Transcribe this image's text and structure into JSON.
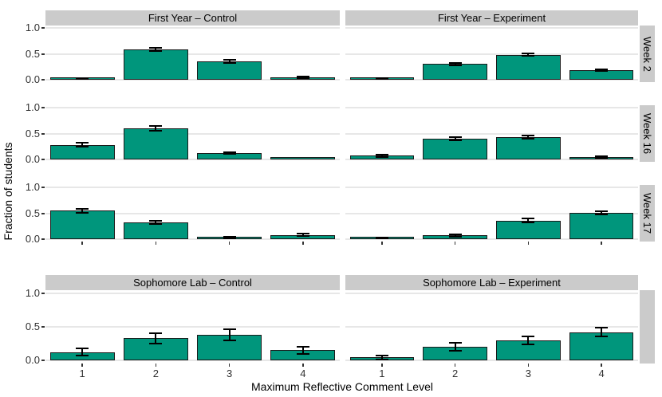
{
  "figure": {
    "colors": {
      "bar_fill": "#00967C",
      "bar_border": "#1A1A1A",
      "strip_background": "#CBCBCB",
      "gridline": "#E7E7E7",
      "error_bar": "#000000",
      "axis_text": "#303030",
      "tick_mark": "#333333"
    }
  },
  "chart_data": {
    "type": "bar",
    "title": "",
    "xlabel": "Maximum Reflective Comment Level",
    "ylabel": "Fraction of students",
    "ylim": [
      0,
      1.0
    ],
    "grid": "major-horizontal",
    "legend": "none",
    "y_tick_values": [
      1.0,
      0.5,
      0.0
    ],
    "y_tick_labels": [
      "1.0",
      "0.5",
      "0.0"
    ],
    "categories": [
      "1",
      "2",
      "3",
      "4"
    ],
    "facet_groups": [
      {
        "col_strips": [
          "First Year – Control",
          "First Year – Experiment"
        ],
        "rows": [
          {
            "strip": "Week 2",
            "panels": [
              {
                "facet": "First Year Control / Week 2",
                "values": [
                  0.01,
                  0.58,
                  0.35,
                  0.05
                ],
                "errors": [
                  0.005,
                  0.03,
                  0.03,
                  0.015
                ]
              },
              {
                "facet": "First Year Experiment / Week 2",
                "values": [
                  0.02,
                  0.3,
                  0.48,
                  0.18
                ],
                "errors": [
                  0.01,
                  0.02,
                  0.025,
                  0.02
                ]
              }
            ]
          },
          {
            "strip": "Week 16",
            "panels": [
              {
                "facet": "First Year Control / Week 16",
                "values": [
                  0.28,
                  0.6,
                  0.12,
                  0.005
                ],
                "errors": [
                  0.035,
                  0.04,
                  0.02,
                  0
                ]
              },
              {
                "facet": "First Year Experiment / Week 16",
                "values": [
                  0.07,
                  0.4,
                  0.43,
                  0.05
                ],
                "errors": [
                  0.02,
                  0.035,
                  0.03,
                  0.015
                ]
              }
            ]
          },
          {
            "strip": "Week 17",
            "panels": [
              {
                "facet": "First Year Control / Week 17",
                "values": [
                  0.55,
                  0.32,
                  0.03,
                  0.08
                ],
                "errors": [
                  0.04,
                  0.035,
                  0.015,
                  0.025
                ]
              },
              {
                "facet": "First Year Experiment / Week 17",
                "values": [
                  0.02,
                  0.07,
                  0.36,
                  0.51
                ],
                "errors": [
                  0.01,
                  0.02,
                  0.035,
                  0.03
                ]
              }
            ]
          }
        ]
      },
      {
        "col_strips": [
          "Sophomore Lab – Control",
          "Sophomore Lab – Experiment"
        ],
        "rows": [
          {
            "strip": "",
            "panels": [
              {
                "facet": "Sophomore Lab Control",
                "values": [
                  0.12,
                  0.33,
                  0.38,
                  0.15
                ],
                "errors": [
                  0.055,
                  0.08,
                  0.08,
                  0.055
                ]
              },
              {
                "facet": "Sophomore Lab Experiment",
                "values": [
                  0.04,
                  0.2,
                  0.3,
                  0.42
                ],
                "errors": [
                  0.03,
                  0.055,
                  0.06,
                  0.065
                ]
              }
            ]
          }
        ]
      }
    ]
  }
}
